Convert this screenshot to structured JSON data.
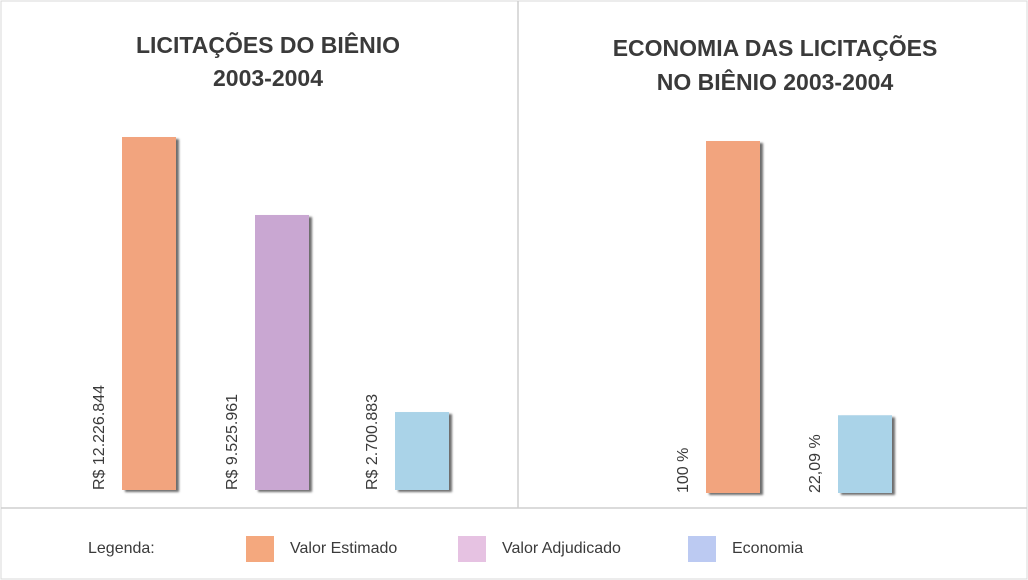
{
  "chart_data": [
    {
      "type": "bar",
      "title": [
        "LICITAÇÕES DO BIÊNIO",
        "2003-2004"
      ],
      "series": [
        {
          "name": "Valor Estimado",
          "color": "#f2a47e",
          "values": [
            12226844
          ],
          "value_labels": [
            "R$ 12.226.844"
          ]
        },
        {
          "name": "Valor Adjudicado",
          "color": "#c9a7d2",
          "values": [
            9525961
          ],
          "value_labels": [
            "R$ 9.525.961"
          ]
        },
        {
          "name": "Economia",
          "color": "#aad3e8",
          "values": [
            2700883
          ],
          "value_labels": [
            "R$ 2.700.883"
          ]
        }
      ]
    },
    {
      "type": "bar",
      "title": [
        "ECONOMIA DAS LICITAÇÕES",
        "NO BIÊNIO 2003-2004"
      ],
      "series": [
        {
          "color": "#f2a47e",
          "values": [
            100
          ],
          "value_labels": [
            "100 %"
          ]
        },
        {
          "color": "#aad3e8",
          "values": [
            22.09
          ],
          "value_labels": [
            "22,09 %"
          ]
        }
      ]
    }
  ],
  "legend": {
    "title": "Legenda:",
    "colors": [
      "#f4a87e",
      "#e6c2e2",
      "#bccaf2"
    ]
  }
}
